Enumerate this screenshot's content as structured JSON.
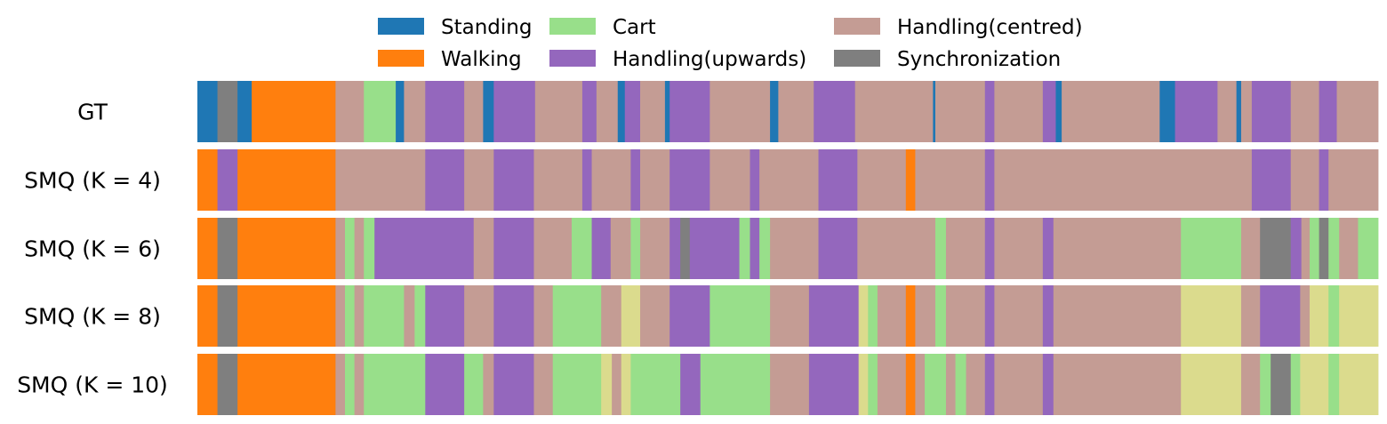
{
  "chart_data": {
    "type": "segmentation-strips",
    "title": "",
    "xlabel": "",
    "ylabel": "",
    "x_range": [
      0,
      100
    ],
    "legend": {
      "placement": "top-center",
      "entries": [
        {
          "key": "standing",
          "label": "Standing",
          "color": "#1f77b4"
        },
        {
          "key": "walking",
          "label": "Walking",
          "color": "#ff7f0e"
        },
        {
          "key": "cart",
          "label": "Cart",
          "color": "#98df8a"
        },
        {
          "key": "handling_up",
          "label": "Handling(upwards)",
          "color": "#9467bd"
        },
        {
          "key": "handling_centred",
          "label": "Handling(centred)",
          "color": "#c49c94"
        },
        {
          "key": "sync",
          "label": "Synchronization",
          "color": "#7f7f7f"
        }
      ]
    },
    "extra_colors": {
      "cluster_extra": "#dbdb8d"
    },
    "rows": [
      {
        "label": "GT",
        "segments": [
          [
            "standing",
            0,
            1.7
          ],
          [
            "sync",
            1.7,
            3.4
          ],
          [
            "standing",
            3.4,
            4.6
          ],
          [
            "walking",
            4.6,
            11.7
          ],
          [
            "handling_centred",
            11.7,
            14.1
          ],
          [
            "cart",
            14.1,
            16.8
          ],
          [
            "standing",
            16.8,
            17.5
          ],
          [
            "handling_centred",
            17.5,
            19.3
          ],
          [
            "handling_up",
            19.3,
            22.6
          ],
          [
            "handling_centred",
            22.6,
            24.2
          ],
          [
            "standing",
            24.2,
            25.1
          ],
          [
            "handling_up",
            25.1,
            28.6
          ],
          [
            "handling_centred",
            28.6,
            32.6
          ],
          [
            "handling_up",
            32.6,
            33.8
          ],
          [
            "handling_centred",
            33.8,
            35.6
          ],
          [
            "standing",
            35.6,
            36.2
          ],
          [
            "handling_up",
            36.2,
            37.5
          ],
          [
            "handling_centred",
            37.5,
            39.6
          ],
          [
            "standing",
            39.6,
            40.0
          ],
          [
            "handling_up",
            40.0,
            43.4
          ],
          [
            "handling_centred",
            43.4,
            48.5
          ],
          [
            "standing",
            48.5,
            49.2
          ],
          [
            "handling_centred",
            49.2,
            52.2
          ],
          [
            "handling_up",
            52.2,
            55.7
          ],
          [
            "handling_centred",
            55.7,
            62.3
          ],
          [
            "standing",
            62.3,
            62.5
          ],
          [
            "handling_centred",
            62.5,
            66.7
          ],
          [
            "handling_up",
            66.7,
            67.5
          ],
          [
            "handling_centred",
            67.5,
            71.6
          ],
          [
            "handling_up",
            71.6,
            72.7
          ],
          [
            "standing",
            72.7,
            73.2
          ],
          [
            "handling_centred",
            73.2,
            81.5
          ],
          [
            "standing",
            81.5,
            82.8
          ],
          [
            "handling_up",
            82.8,
            86.4
          ],
          [
            "handling_centred",
            86.4,
            88.0
          ],
          [
            "standing",
            88.0,
            88.4
          ],
          [
            "handling_centred",
            88.4,
            89.3
          ],
          [
            "handling_up",
            89.3,
            92.6
          ],
          [
            "handling_centred",
            92.6,
            95.0
          ],
          [
            "handling_up",
            95.0,
            96.5
          ],
          [
            "handling_centred",
            96.5,
            100
          ]
        ]
      },
      {
        "label": "SMQ (K = 4)",
        "segments": [
          [
            "walking",
            0,
            1.7
          ],
          [
            "handling_up",
            1.7,
            3.4
          ],
          [
            "walking",
            3.4,
            11.7
          ],
          [
            "handling_centred",
            11.7,
            19.3
          ],
          [
            "handling_up",
            19.3,
            22.6
          ],
          [
            "handling_centred",
            22.6,
            25.1
          ],
          [
            "handling_up",
            25.1,
            28.5
          ],
          [
            "handling_centred",
            28.5,
            32.6
          ],
          [
            "handling_up",
            32.6,
            33.4
          ],
          [
            "handling_centred",
            33.4,
            36.7
          ],
          [
            "handling_up",
            36.7,
            37.5
          ],
          [
            "handling_centred",
            37.5,
            40.0
          ],
          [
            "handling_up",
            40.0,
            43.4
          ],
          [
            "handling_centred",
            43.4,
            46.8
          ],
          [
            "handling_up",
            46.8,
            47.6
          ],
          [
            "handling_centred",
            47.6,
            52.6
          ],
          [
            "handling_up",
            52.6,
            55.9
          ],
          [
            "handling_centred",
            55.9,
            60.0
          ],
          [
            "walking",
            60.0,
            60.8
          ],
          [
            "handling_centred",
            60.8,
            66.7
          ],
          [
            "handling_up",
            66.7,
            67.5
          ],
          [
            "handling_centred",
            67.5,
            89.3
          ],
          [
            "handling_up",
            89.3,
            92.6
          ],
          [
            "handling_centred",
            92.6,
            95.0
          ],
          [
            "handling_up",
            95.0,
            95.8
          ],
          [
            "handling_centred",
            95.8,
            100
          ]
        ]
      },
      {
        "label": "SMQ (K = 6)",
        "segments": [
          [
            "walking",
            0,
            1.7
          ],
          [
            "sync",
            1.7,
            3.4
          ],
          [
            "walking",
            3.4,
            11.7
          ],
          [
            "handling_centred",
            11.7,
            12.5
          ],
          [
            "cart",
            12.5,
            13.3
          ],
          [
            "handling_centred",
            13.3,
            14.1
          ],
          [
            "cart",
            14.1,
            15.0
          ],
          [
            "handling_up",
            15.0,
            23.4
          ],
          [
            "handling_centred",
            23.4,
            25.1
          ],
          [
            "handling_up",
            25.1,
            28.5
          ],
          [
            "handling_centred",
            28.5,
            31.7
          ],
          [
            "cart",
            31.7,
            33.4
          ],
          [
            "handling_up",
            33.4,
            35.0
          ],
          [
            "handling_centred",
            35.0,
            36.7
          ],
          [
            "cart",
            36.7,
            37.5
          ],
          [
            "handling_centred",
            37.5,
            40.0
          ],
          [
            "handling_up",
            40.0,
            40.9
          ],
          [
            "sync",
            40.9,
            41.7
          ],
          [
            "handling_up",
            41.7,
            45.9
          ],
          [
            "cart",
            45.9,
            46.8
          ],
          [
            "handling_up",
            46.8,
            47.6
          ],
          [
            "cart",
            47.6,
            48.5
          ],
          [
            "handling_centred",
            48.5,
            52.6
          ],
          [
            "handling_up",
            52.6,
            55.9
          ],
          [
            "handling_centred",
            55.9,
            62.5
          ],
          [
            "cart",
            62.5,
            63.4
          ],
          [
            "handling_centred",
            63.4,
            66.7
          ],
          [
            "handling_up",
            66.7,
            67.5
          ],
          [
            "handling_centred",
            67.5,
            71.6
          ],
          [
            "handling_up",
            71.6,
            72.5
          ],
          [
            "handling_centred",
            72.5,
            83.3
          ],
          [
            "cart",
            83.3,
            88.4
          ],
          [
            "handling_centred",
            88.4,
            90.0
          ],
          [
            "sync",
            90.0,
            92.6
          ],
          [
            "handling_up",
            92.6,
            93.5
          ],
          [
            "handling_centred",
            93.5,
            94.2
          ],
          [
            "cart",
            94.2,
            95.0
          ],
          [
            "sync",
            95.0,
            95.8
          ],
          [
            "cart",
            95.8,
            96.7
          ],
          [
            "handling_centred",
            96.7,
            98.3
          ],
          [
            "cart",
            98.3,
            100
          ]
        ]
      },
      {
        "label": "SMQ (K = 8)",
        "segments": [
          [
            "walking",
            0,
            1.7
          ],
          [
            "sync",
            1.7,
            3.4
          ],
          [
            "walking",
            3.4,
            11.7
          ],
          [
            "handling_centred",
            11.7,
            12.5
          ],
          [
            "cart",
            12.5,
            13.3
          ],
          [
            "handling_centred",
            13.3,
            14.1
          ],
          [
            "cart",
            14.1,
            17.5
          ],
          [
            "handling_centred",
            17.5,
            18.4
          ],
          [
            "cart",
            18.4,
            19.3
          ],
          [
            "handling_up",
            19.3,
            22.6
          ],
          [
            "handling_centred",
            22.6,
            25.1
          ],
          [
            "handling_up",
            25.1,
            28.5
          ],
          [
            "handling_centred",
            28.5,
            30.1
          ],
          [
            "cart",
            30.1,
            34.2
          ],
          [
            "handling_centred",
            34.2,
            35.9
          ],
          [
            "cluster_extra",
            35.9,
            37.5
          ],
          [
            "handling_centred",
            37.5,
            40.0
          ],
          [
            "handling_up",
            40.0,
            43.4
          ],
          [
            "cart",
            43.4,
            48.5
          ],
          [
            "handling_centred",
            48.5,
            51.8
          ],
          [
            "handling_up",
            51.8,
            56.0
          ],
          [
            "cluster_extra",
            56.0,
            56.8
          ],
          [
            "cart",
            56.8,
            57.6
          ],
          [
            "handling_centred",
            57.6,
            60.0
          ],
          [
            "walking",
            60.0,
            60.8
          ],
          [
            "handling_centred",
            60.8,
            62.5
          ],
          [
            "cart",
            62.5,
            63.4
          ],
          [
            "handling_centred",
            63.4,
            66.7
          ],
          [
            "handling_up",
            66.7,
            67.5
          ],
          [
            "handling_centred",
            67.5,
            71.6
          ],
          [
            "handling_up",
            71.6,
            72.5
          ],
          [
            "handling_centred",
            72.5,
            83.3
          ],
          [
            "cluster_extra",
            83.3,
            88.4
          ],
          [
            "handling_centred",
            88.4,
            90.0
          ],
          [
            "handling_up",
            90.0,
            93.4
          ],
          [
            "handling_centred",
            93.4,
            94.2
          ],
          [
            "cluster_extra",
            94.2,
            95.8
          ],
          [
            "cart",
            95.8,
            96.7
          ],
          [
            "cluster_extra",
            96.7,
            100
          ]
        ]
      },
      {
        "label": "SMQ (K = 10)",
        "segments": [
          [
            "walking",
            0,
            1.7
          ],
          [
            "sync",
            1.7,
            3.4
          ],
          [
            "walking",
            3.4,
            11.7
          ],
          [
            "handling_centred",
            11.7,
            12.5
          ],
          [
            "cart",
            12.5,
            13.3
          ],
          [
            "handling_centred",
            13.3,
            14.1
          ],
          [
            "cart",
            14.1,
            19.3
          ],
          [
            "handling_up",
            19.3,
            22.6
          ],
          [
            "cart",
            22.6,
            24.2
          ],
          [
            "handling_centred",
            24.2,
            25.1
          ],
          [
            "handling_up",
            25.1,
            28.5
          ],
          [
            "handling_centred",
            28.5,
            30.1
          ],
          [
            "cart",
            30.1,
            34.2
          ],
          [
            "cluster_extra",
            34.2,
            35.1
          ],
          [
            "handling_centred",
            35.1,
            35.9
          ],
          [
            "cluster_extra",
            35.9,
            36.7
          ],
          [
            "cart",
            36.7,
            40.9
          ],
          [
            "handling_up",
            40.9,
            42.6
          ],
          [
            "cart",
            42.6,
            48.5
          ],
          [
            "handling_centred",
            48.5,
            51.8
          ],
          [
            "handling_up",
            51.8,
            56.0
          ],
          [
            "cluster_extra",
            56.0,
            56.8
          ],
          [
            "cart",
            56.8,
            57.6
          ],
          [
            "handling_centred",
            57.6,
            60.0
          ],
          [
            "walking",
            60.0,
            60.8
          ],
          [
            "handling_centred",
            60.8,
            61.6
          ],
          [
            "cart",
            61.6,
            63.4
          ],
          [
            "handling_centred",
            63.4,
            64.2
          ],
          [
            "cart",
            64.2,
            65.1
          ],
          [
            "handling_centred",
            65.1,
            66.7
          ],
          [
            "handling_up",
            66.7,
            67.5
          ],
          [
            "handling_centred",
            67.5,
            71.6
          ],
          [
            "handling_up",
            71.6,
            72.5
          ],
          [
            "handling_centred",
            72.5,
            83.3
          ],
          [
            "cluster_extra",
            83.3,
            88.4
          ],
          [
            "handling_centred",
            88.4,
            90.0
          ],
          [
            "cart",
            90.0,
            90.9
          ],
          [
            "sync",
            90.9,
            92.6
          ],
          [
            "cart",
            92.6,
            93.4
          ],
          [
            "cluster_extra",
            93.4,
            95.8
          ],
          [
            "cart",
            95.8,
            96.7
          ],
          [
            "cluster_extra",
            96.7,
            100
          ]
        ]
      }
    ]
  }
}
